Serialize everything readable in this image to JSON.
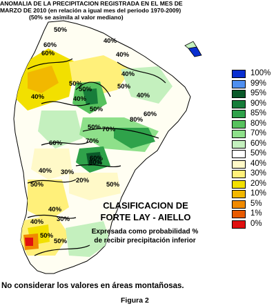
{
  "title": {
    "line1": "ANOMALIA DE LA PRECIPITACION REGISTRADA EN EL MES DE",
    "line2": "MARZO DE 2010 (en relación a igual mes del periodo 1970-2009)",
    "line3": "(50% se asimila al valor mediano)"
  },
  "legend": [
    {
      "label": "100%",
      "color": "#0a2fd0"
    },
    {
      "label": "99%",
      "color": "#4f8ff0"
    },
    {
      "label": "95%",
      "color": "#0b5a2a"
    },
    {
      "label": "90%",
      "color": "#177d3a"
    },
    {
      "label": "85%",
      "color": "#2fa24a"
    },
    {
      "label": "80%",
      "color": "#57c25e"
    },
    {
      "label": "70%",
      "color": "#8ee08a"
    },
    {
      "label": "60%",
      "color": "#c4f0be"
    },
    {
      "label": "50%",
      "color": "#ffffff"
    },
    {
      "label": "40%",
      "color": "#fff9c8"
    },
    {
      "label": "30%",
      "color": "#fff07a"
    },
    {
      "label": "20%",
      "color": "#f2e000"
    },
    {
      "label": "10%",
      "color": "#f2b800"
    },
    {
      "label": "5%",
      "color": "#f08a00"
    },
    {
      "label": "1%",
      "color": "#e85a00"
    },
    {
      "label": "0%",
      "color": "#e01010"
    }
  ],
  "classification": {
    "title_line1": "CLASIFICACION DE",
    "title_line2": "FORTE LAY - AIELLO",
    "sub_line1": "Expresada como probabilidad %",
    "sub_line2": "de recibir precipitación inferior"
  },
  "contour_labels": [
    "50%",
    "60%",
    "40%",
    "40%",
    "40%",
    "60%",
    "40%",
    "50%",
    "40%",
    "50%",
    "50%",
    "50%",
    "70%",
    "80%",
    "60%",
    "40%",
    "50%",
    "60%",
    "60%",
    "70%",
    "80%",
    "50%",
    "40%",
    "30%",
    "20%",
    "50%",
    "40%",
    "30%",
    "40%",
    "50%",
    "50%"
  ],
  "note": "No considerar los valores en áreas montañosas.",
  "figure": "Figura 2"
}
